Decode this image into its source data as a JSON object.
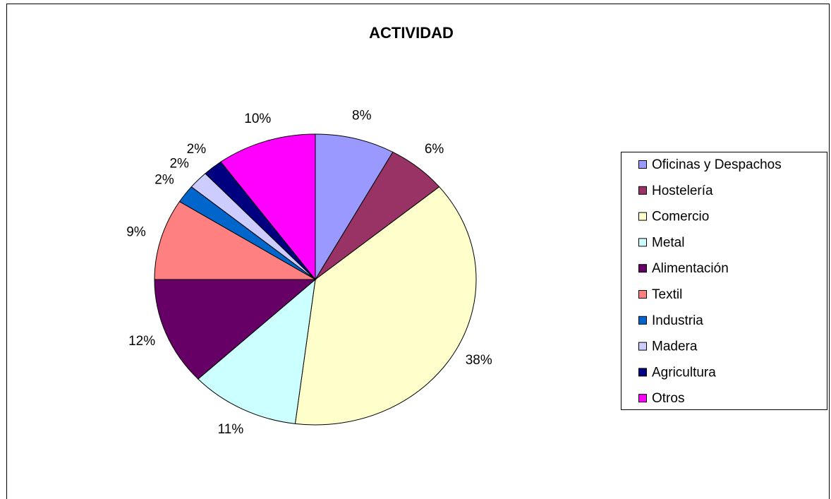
{
  "chart_data": {
    "type": "pie",
    "title": "ACTIVIDAD",
    "categories": [
      "Oficinas y Despachos",
      "Hostelería",
      "Comercio",
      "Metal",
      "Alimentación",
      "Textil",
      "Industria",
      "Madera",
      "Agricultura",
      "Otros"
    ],
    "values": [
      8,
      6,
      38,
      11,
      12,
      9,
      2,
      2,
      2,
      10
    ],
    "value_labels": [
      "8%",
      "6%",
      "38%",
      "11%",
      "12%",
      "9%",
      "2%",
      "2%",
      "2%",
      "10%"
    ],
    "colors": [
      "#9999FF",
      "#993366",
      "#FFFFCC",
      "#CCFFFF",
      "#660066",
      "#FF8080",
      "#0066CC",
      "#CCCCFF",
      "#000080",
      "#FF00FF"
    ],
    "legend": "right"
  }
}
